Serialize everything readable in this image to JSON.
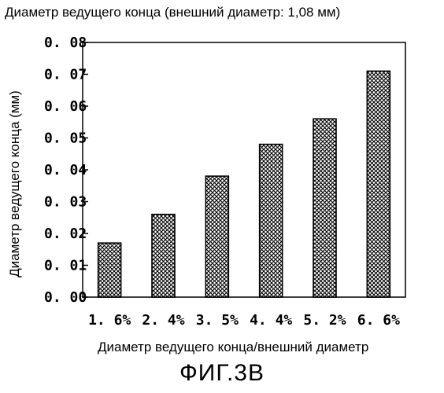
{
  "chart_data": {
    "type": "bar",
    "title": "Диаметр ведущего конца (внешний диаметр: 1,08 мм)",
    "xlabel": "Диаметр ведущего конца/внешний диаметр",
    "ylabel": "Диаметр ведущего конца (мм)",
    "categories": [
      "1. 6%",
      "2. 4%",
      "3. 5%",
      "4. 4%",
      "5. 2%",
      "6. 6%"
    ],
    "values": [
      0.017,
      0.026,
      0.038,
      0.048,
      0.056,
      0.071
    ],
    "ylim": [
      0,
      0.08
    ],
    "yticks": [
      "0. 00",
      "0. 01",
      "0. 02",
      "0. 03",
      "0. 04",
      "0. 05",
      "0. 06",
      "0. 07",
      "0. 08"
    ],
    "grid": false,
    "bar_pattern": "crosshatch"
  },
  "figure_caption": "ФИГ.3B"
}
